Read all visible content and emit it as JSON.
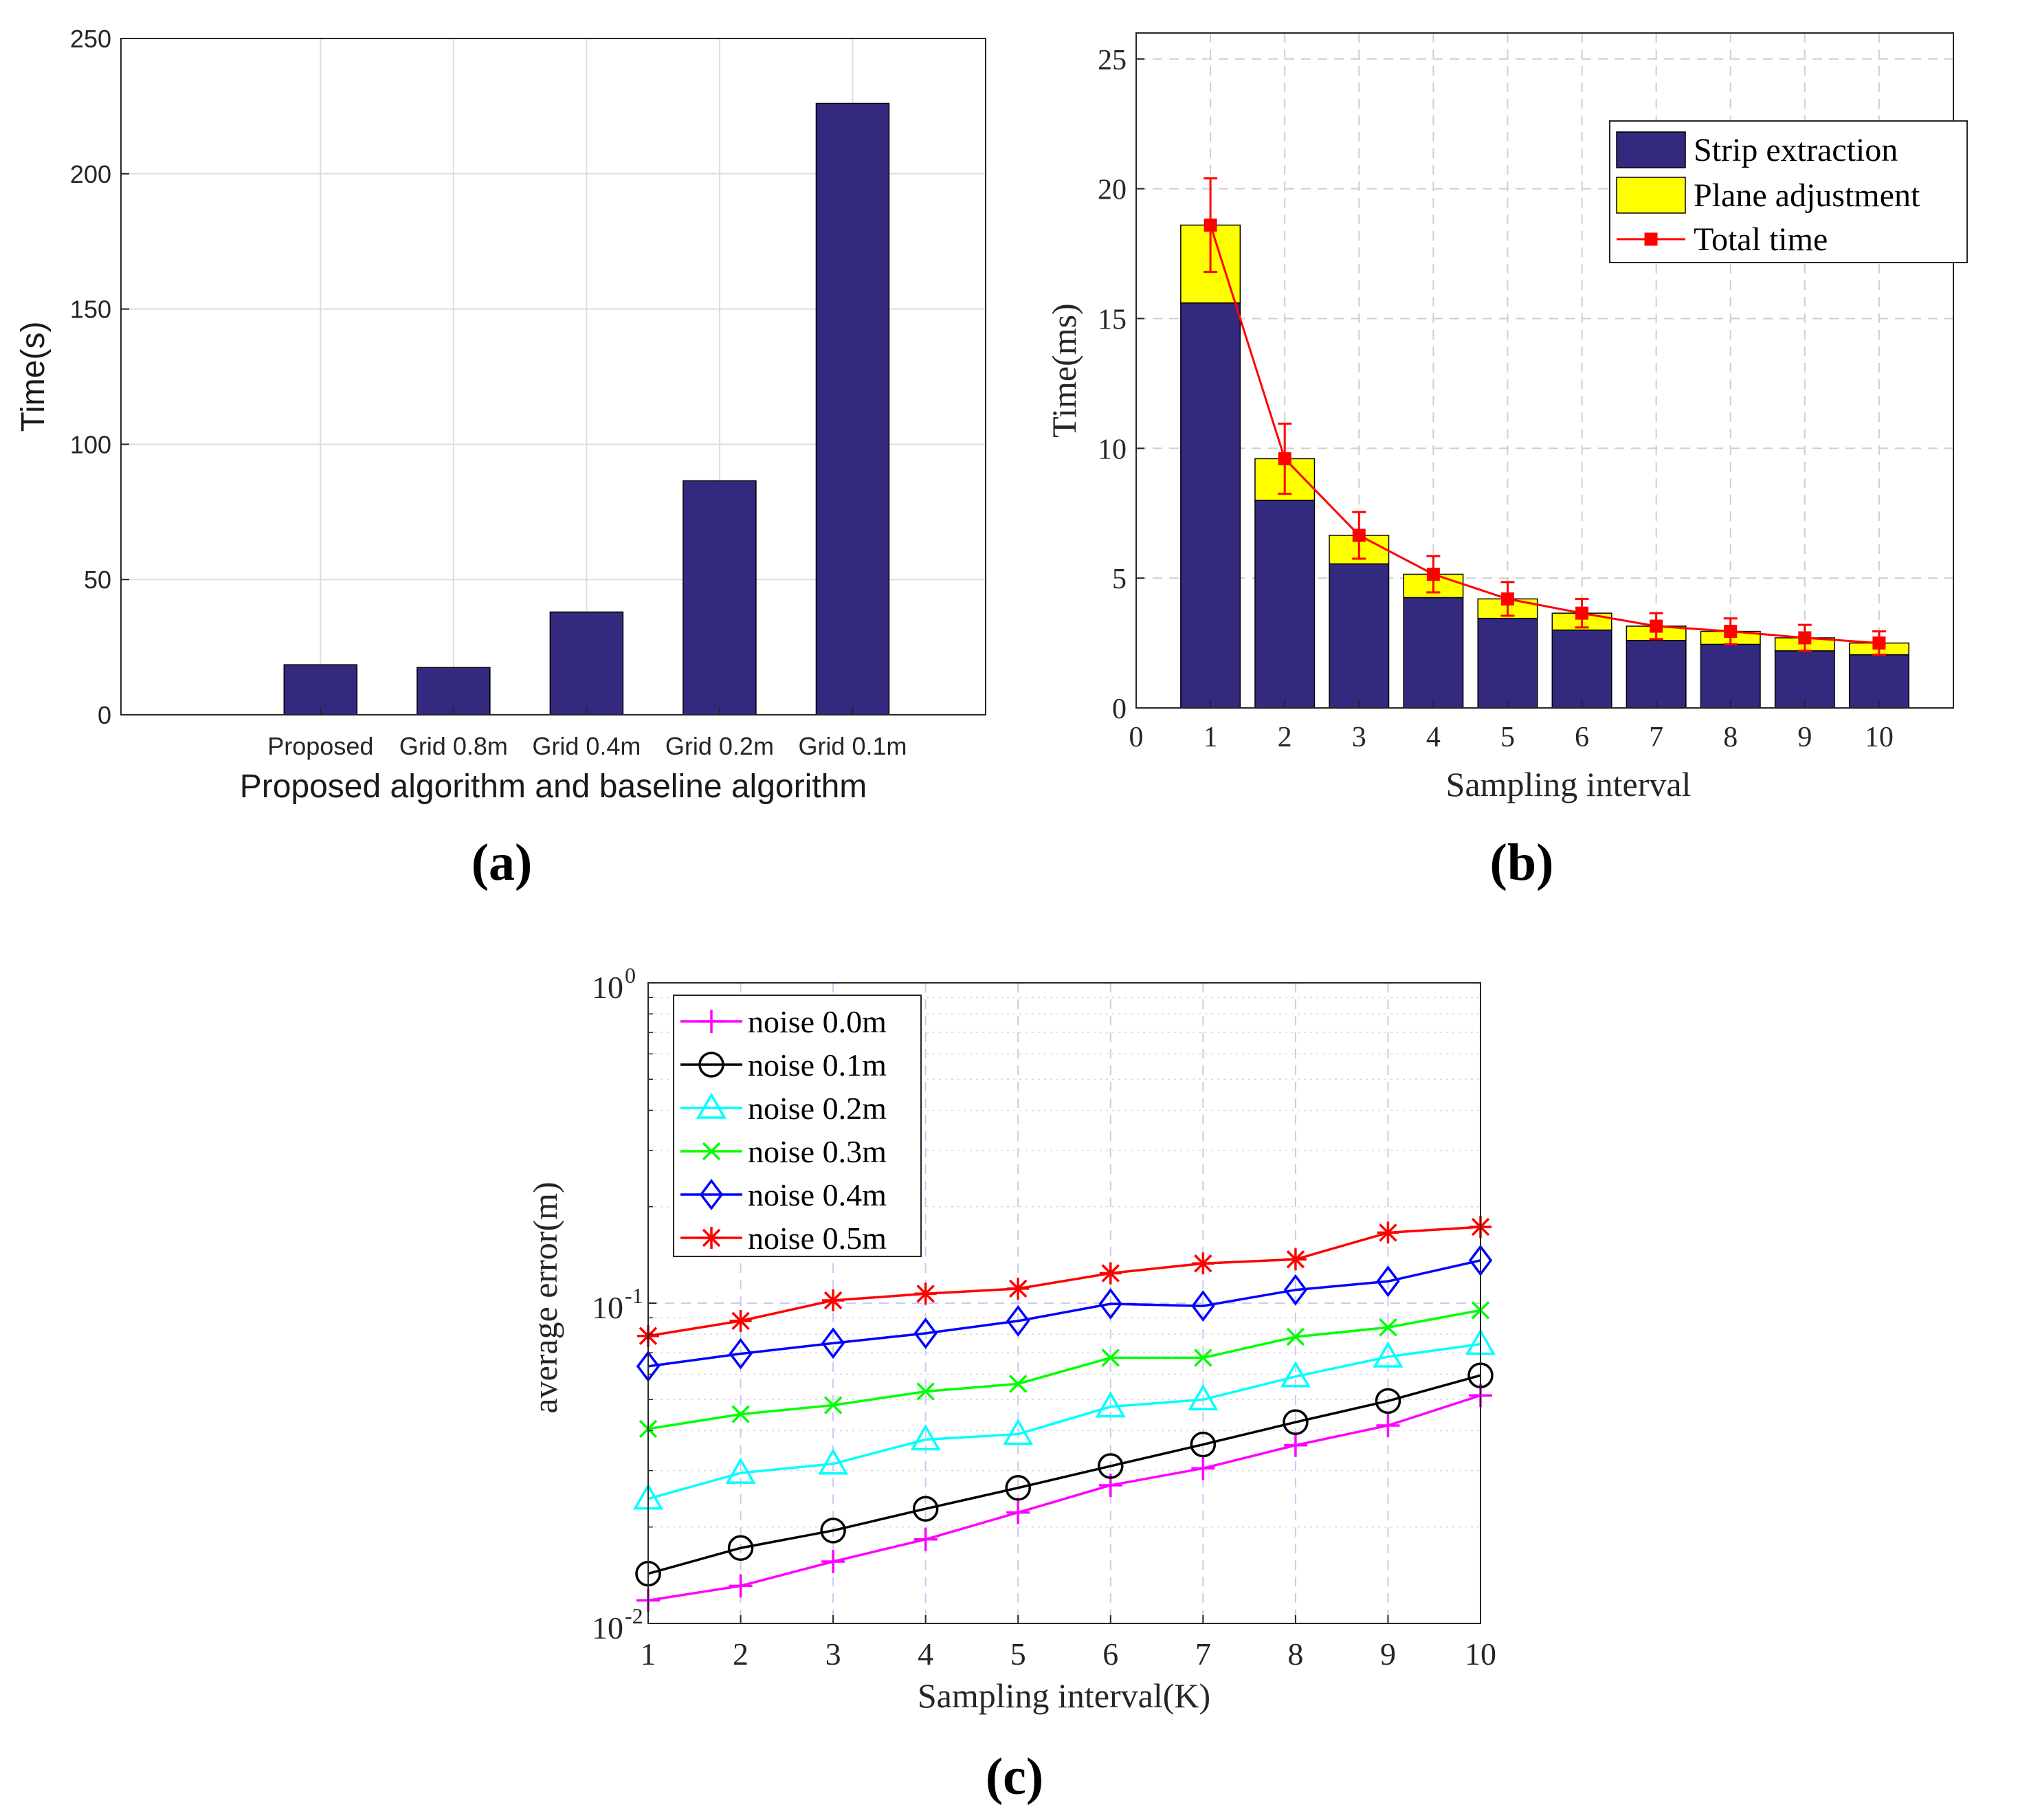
{
  "chart_data": [
    {
      "type": "bar",
      "panel_label": "(a)",
      "title": "",
      "categories": [
        "Proposed",
        "Grid 0.8m",
        "Grid 0.4m",
        "Grid 0.2m",
        "Grid 0.1m"
      ],
      "values": [
        18.5,
        17.5,
        38,
        86.5,
        226
      ],
      "xlabel": "Proposed algorithm and baseline algorithm",
      "ylabel": "Time(s)",
      "ylim": [
        0,
        250
      ],
      "yticks": [
        0,
        50,
        100,
        150,
        200,
        250
      ],
      "grid": true,
      "colors": {
        "bar": "#332a80",
        "grid": "#dddddd"
      }
    },
    {
      "type": "bar",
      "stacked": true,
      "panel_label": "(b)",
      "title": "",
      "categories": [
        1,
        2,
        3,
        4,
        5,
        6,
        7,
        8,
        9,
        10
      ],
      "series": [
        {
          "name": "Strip extraction",
          "kind": "bar",
          "color": "#332a80",
          "values": [
            15.6,
            8.0,
            5.55,
            4.25,
            3.45,
            3.0,
            2.6,
            2.45,
            2.2,
            2.05
          ]
        },
        {
          "name": "Plane adjustment",
          "kind": "bar",
          "color": "#ffff00",
          "values": [
            3.0,
            1.6,
            1.1,
            0.9,
            0.75,
            0.65,
            0.55,
            0.5,
            0.5,
            0.45
          ]
        },
        {
          "name": "Total time",
          "kind": "line",
          "color": "#ff0000",
          "values": [
            18.6,
            9.6,
            6.65,
            5.15,
            4.2,
            3.65,
            3.15,
            2.95,
            2.7,
            2.5
          ],
          "error": [
            1.8,
            1.35,
            0.9,
            0.7,
            0.65,
            0.55,
            0.5,
            0.5,
            0.5,
            0.45
          ]
        }
      ],
      "xlabel": "Sampling interval",
      "ylabel": "Time(ms)",
      "xlim": [
        0,
        11
      ],
      "xticks": [
        0,
        1,
        2,
        3,
        4,
        5,
        6,
        7,
        8,
        9,
        10
      ],
      "ylim": [
        0,
        26
      ],
      "yticks": [
        0,
        5,
        10,
        15,
        20,
        25
      ],
      "grid": true,
      "legend_position": "top-right"
    },
    {
      "type": "line",
      "panel_label": "(c)",
      "title": "",
      "x": [
        1,
        2,
        3,
        4,
        5,
        6,
        7,
        8,
        9,
        10
      ],
      "series": [
        {
          "name": "noise 0.0m",
          "marker": "plus",
          "color": "#ff00ff",
          "values": [
            0.0118,
            0.0131,
            0.0156,
            0.0183,
            0.0222,
            0.027,
            0.0305,
            0.036,
            0.0415,
            0.0515
          ]
        },
        {
          "name": "noise 0.1m",
          "marker": "circle",
          "color": "#000000",
          "values": [
            0.0143,
            0.0172,
            0.0195,
            0.0228,
            0.0265,
            0.031,
            0.0362,
            0.0425,
            0.0495,
            0.0595
          ]
        },
        {
          "name": "noise 0.2m",
          "marker": "triangle",
          "color": "#00ffff",
          "values": [
            0.0245,
            0.0295,
            0.0315,
            0.0375,
            0.039,
            0.0475,
            0.05,
            0.059,
            0.068,
            0.0745
          ]
        },
        {
          "name": "noise 0.3m",
          "marker": "x",
          "color": "#00ff00",
          "values": [
            0.0405,
            0.045,
            0.048,
            0.053,
            0.056,
            0.0675,
            0.0675,
            0.0785,
            0.084,
            0.095
          ]
        },
        {
          "name": "noise 0.4m",
          "marker": "diamond",
          "color": "#0000ff",
          "values": [
            0.0635,
            0.0695,
            0.075,
            0.0805,
            0.088,
            0.0995,
            0.098,
            0.11,
            0.117,
            0.136
          ]
        },
        {
          "name": "noise 0.5m",
          "marker": "star",
          "color": "#ff0000",
          "values": [
            0.079,
            0.088,
            0.102,
            0.107,
            0.111,
            0.124,
            0.133,
            0.137,
            0.166,
            0.173
          ]
        }
      ],
      "xlabel": "Sampling interval(K)",
      "ylabel": "average error(m)",
      "xlim": [
        1,
        10
      ],
      "xticks": [
        1,
        2,
        3,
        4,
        5,
        6,
        7,
        8,
        9,
        10
      ],
      "yscale": "log",
      "ylim": [
        0.01,
        1
      ],
      "yticks": [
        {
          "base": "10",
          "exp": "-2",
          "value": 0.01
        },
        {
          "base": "10",
          "exp": "-1",
          "value": 0.1
        },
        {
          "base": "10",
          "exp": "0",
          "value": 1
        }
      ],
      "grid": true,
      "legend_position": "top-left"
    }
  ]
}
